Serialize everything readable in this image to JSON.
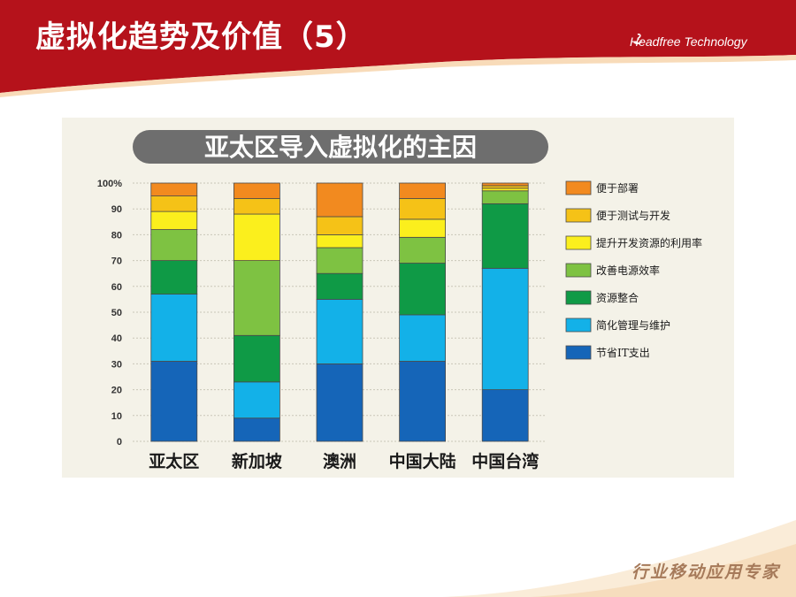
{
  "slide": {
    "title": "虚拟化趋势及价值（5）",
    "brand": "Headfree Technology",
    "footer": "行业移动应用专家"
  },
  "colors": {
    "header_red": "#b5121b",
    "panel_bg": "#f4f2e8",
    "banner_gray": "#6e6e6e"
  },
  "icons": {
    "brand_logo": "swoosh-logo"
  },
  "chart_data": {
    "type": "bar",
    "stacked": true,
    "title": "亚太区导入虚拟化的主因",
    "categories": [
      "亚太区",
      "新加坡",
      "澳洲",
      "中国大陆",
      "中国台湾"
    ],
    "y_ticks": [
      "100%",
      "90",
      "80",
      "70",
      "60",
      "50",
      "40",
      "30",
      "20",
      "10",
      "0"
    ],
    "ylim": [
      0,
      100
    ],
    "grid": true,
    "legend_position": "right",
    "series": [
      {
        "name": "节省IT支出",
        "color": "#1565b8",
        "values": [
          31,
          9,
          30,
          31,
          20
        ]
      },
      {
        "name": "简化管理与维护",
        "color": "#13b1e8",
        "values": [
          26,
          14,
          25,
          18,
          47
        ]
      },
      {
        "name": "资源整合",
        "color": "#0f9a46",
        "values": [
          13,
          18,
          10,
          20,
          25
        ]
      },
      {
        "name": "改善电源效率",
        "color": "#7ec242",
        "values": [
          12,
          29,
          10,
          10,
          5
        ]
      },
      {
        "name": "提升开发资源的利用率",
        "color": "#fbef1d",
        "values": [
          7,
          18,
          5,
          7,
          1
        ]
      },
      {
        "name": "便于测试与开发",
        "color": "#f5c217",
        "values": [
          6,
          6,
          7,
          8,
          1
        ]
      },
      {
        "name": "便于部署",
        "color": "#f28a1f",
        "values": [
          5,
          6,
          13,
          6,
          1
        ]
      }
    ]
  }
}
